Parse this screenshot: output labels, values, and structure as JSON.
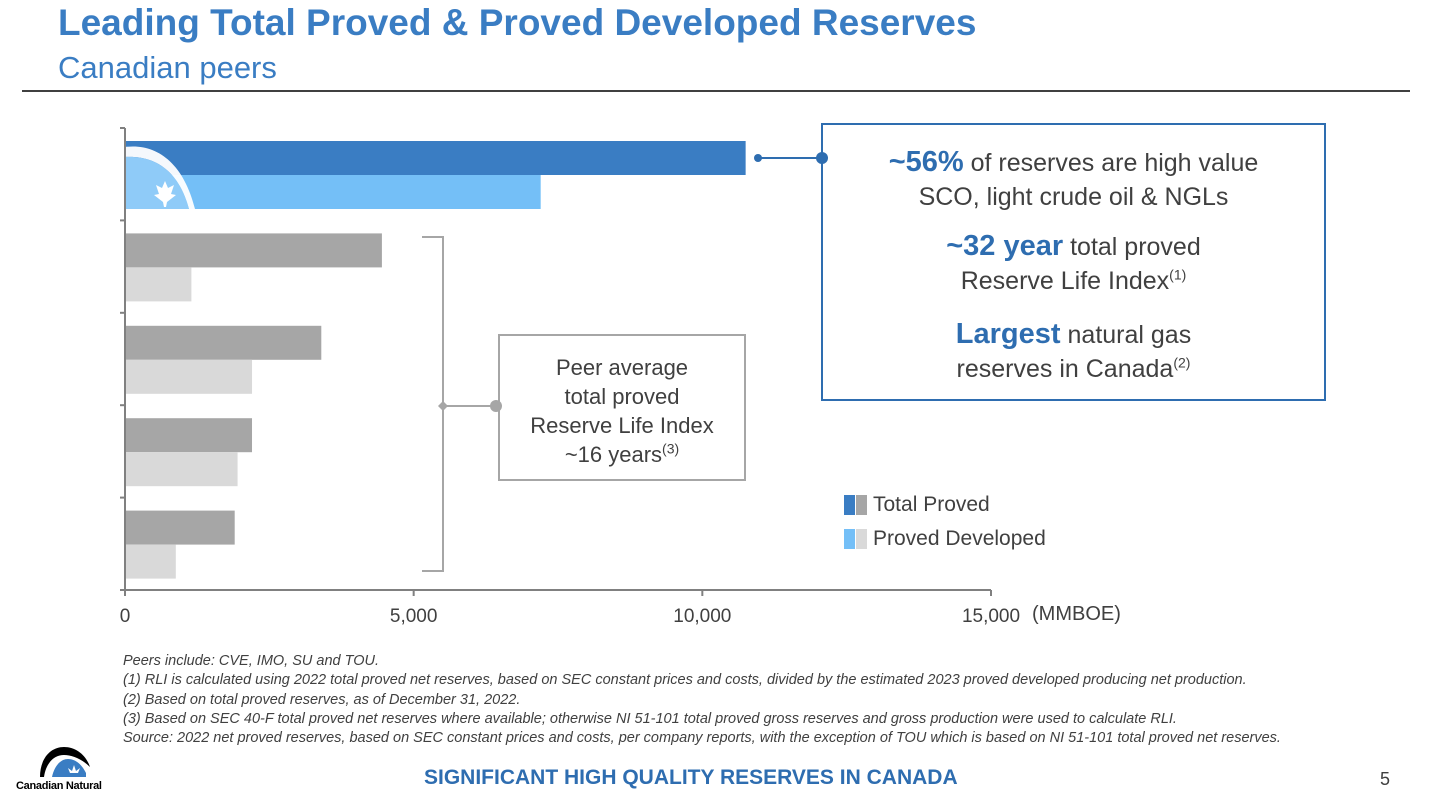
{
  "header": {
    "title": "Leading Total Proved & Proved Developed Reserves",
    "subtitle": "Canadian peers"
  },
  "chart_data": {
    "type": "bar",
    "orientation": "horizontal",
    "categories": [
      "",
      "",
      "",
      "",
      ""
    ],
    "series": [
      {
        "name": "Total Proved",
        "values": [
          10750,
          4450,
          3400,
          2200,
          1900
        ]
      },
      {
        "name": "Proved Developed",
        "values": [
          7200,
          1150,
          2200,
          1950,
          880
        ]
      }
    ],
    "xlim": [
      0,
      15000
    ],
    "xticks": [
      "0",
      "5,000",
      "10,000",
      "15,000"
    ],
    "xlabel": "(MMBOE)",
    "colors": {
      "highlight_total": "#3a7dc3",
      "highlight_developed": "#74bff7",
      "peer_total": "#a6a6a6",
      "peer_developed": "#d9d9d9"
    },
    "legend": {
      "position": "bottom-right",
      "items": [
        "Total Proved",
        "Proved Developed"
      ]
    }
  },
  "peer_box": {
    "line1": "Peer average",
    "line2": "total proved",
    "line3": "Reserve Life Index",
    "line4": "~16 years",
    "line4_sup": "(3)"
  },
  "highlights": {
    "item1_strong": "~56%",
    "item1_rest_a": " of reserves are high value",
    "item1_rest_b": "SCO, light crude oil & NGLs",
    "item2_strong": "~32 year",
    "item2_rest_a": " total proved",
    "item2_rest_b": "Reserve Life Index",
    "item2_sup": "(1)",
    "item3_strong": "Largest",
    "item3_rest_a": " natural gas",
    "item3_rest_b": "reserves in Canada",
    "item3_sup": "(2)"
  },
  "footnotes": [
    "Peers include: CVE, IMO, SU and TOU.",
    "(1)  RLI is calculated using 2022 total proved net reserves, based on SEC constant prices and costs, divided by the estimated 2023 proved developed producing net production.",
    "(2)  Based on total proved reserves, as of December 31, 2022.",
    "(3)  Based on SEC 40-F total proved net reserves where available; otherwise NI 51-101 total proved gross reserves and gross production were used to calculate RLI.",
    "Source: 2022 net proved reserves, based on SEC constant prices and costs, per company reports, with the exception of TOU which is based on NI 51-101 total proved net reserves."
  ],
  "footer": {
    "tagline": "SIGNIFICANT HIGH QUALITY RESERVES IN CANADA",
    "page_number": "5",
    "logo_text": "Canadian Natural",
    "logo_icon": "canadian-natural-logo-icon"
  }
}
